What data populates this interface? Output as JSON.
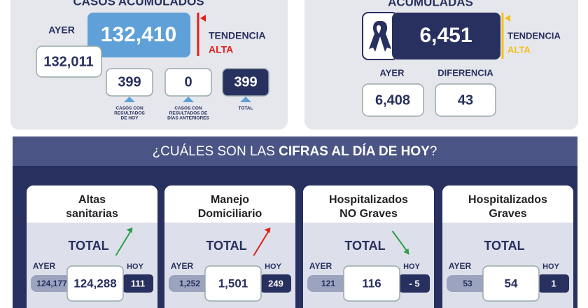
{
  "acumulados": {
    "title": "CASOS ACUMULADOS",
    "ayer_label": "AYER",
    "total": "132,410",
    "ayer": "132,011",
    "tendencia_label": "TENDENCIA",
    "tendencia": "ALTA",
    "tendencia_color": "#e0201b",
    "boxes": [
      {
        "value": "399",
        "caption": [
          "CASOS CON",
          "RESULTADOS",
          "DE HOY"
        ]
      },
      {
        "value": "0",
        "caption": [
          "CASOS CON",
          "RESULTADOS DE",
          "DÍAS ANTERIORES"
        ]
      },
      {
        "value": "399",
        "caption": [
          "TOTAL"
        ]
      }
    ]
  },
  "defunciones": {
    "title": "ACUMULADAS",
    "total": "6,451",
    "tendencia_label": "TENDENCIA",
    "tendencia": "ALTA",
    "tendencia_color": "#f3c11b",
    "ayer_label": "AYER",
    "ayer": "6,408",
    "diferencia_label": "DIFERENCIA",
    "diferencia": "43"
  },
  "hoy": {
    "title_prefix": "¿CUÁLES SON LAS ",
    "title_bold": "CIFRAS AL DÍA DE HOY",
    "title_suffix": "?",
    "labels": {
      "total": "TOTAL",
      "ayer": "AYER",
      "hoy": "HOY"
    },
    "cards": [
      {
        "title": [
          "Altas",
          "sanitarias"
        ],
        "ayer": "124,177",
        "total": "124,288",
        "hoy": "111",
        "trend": "up",
        "trend_color": "#2e9e4a"
      },
      {
        "title": [
          "Manejo",
          "Domiciliario"
        ],
        "ayer": "1,252",
        "total": "1,501",
        "hoy": "249",
        "trend": "up",
        "trend_color": "#e0201b"
      },
      {
        "title": [
          "Hospitalizados",
          "NO Graves"
        ],
        "ayer": "121",
        "total": "116",
        "hoy": "- 5",
        "trend": "down",
        "trend_color": "#2e9e4a"
      },
      {
        "title": [
          "Hospitalizados",
          "Graves"
        ],
        "ayer": "53",
        "total": "54",
        "hoy": "1",
        "trend": null,
        "trend_color": null
      }
    ]
  }
}
